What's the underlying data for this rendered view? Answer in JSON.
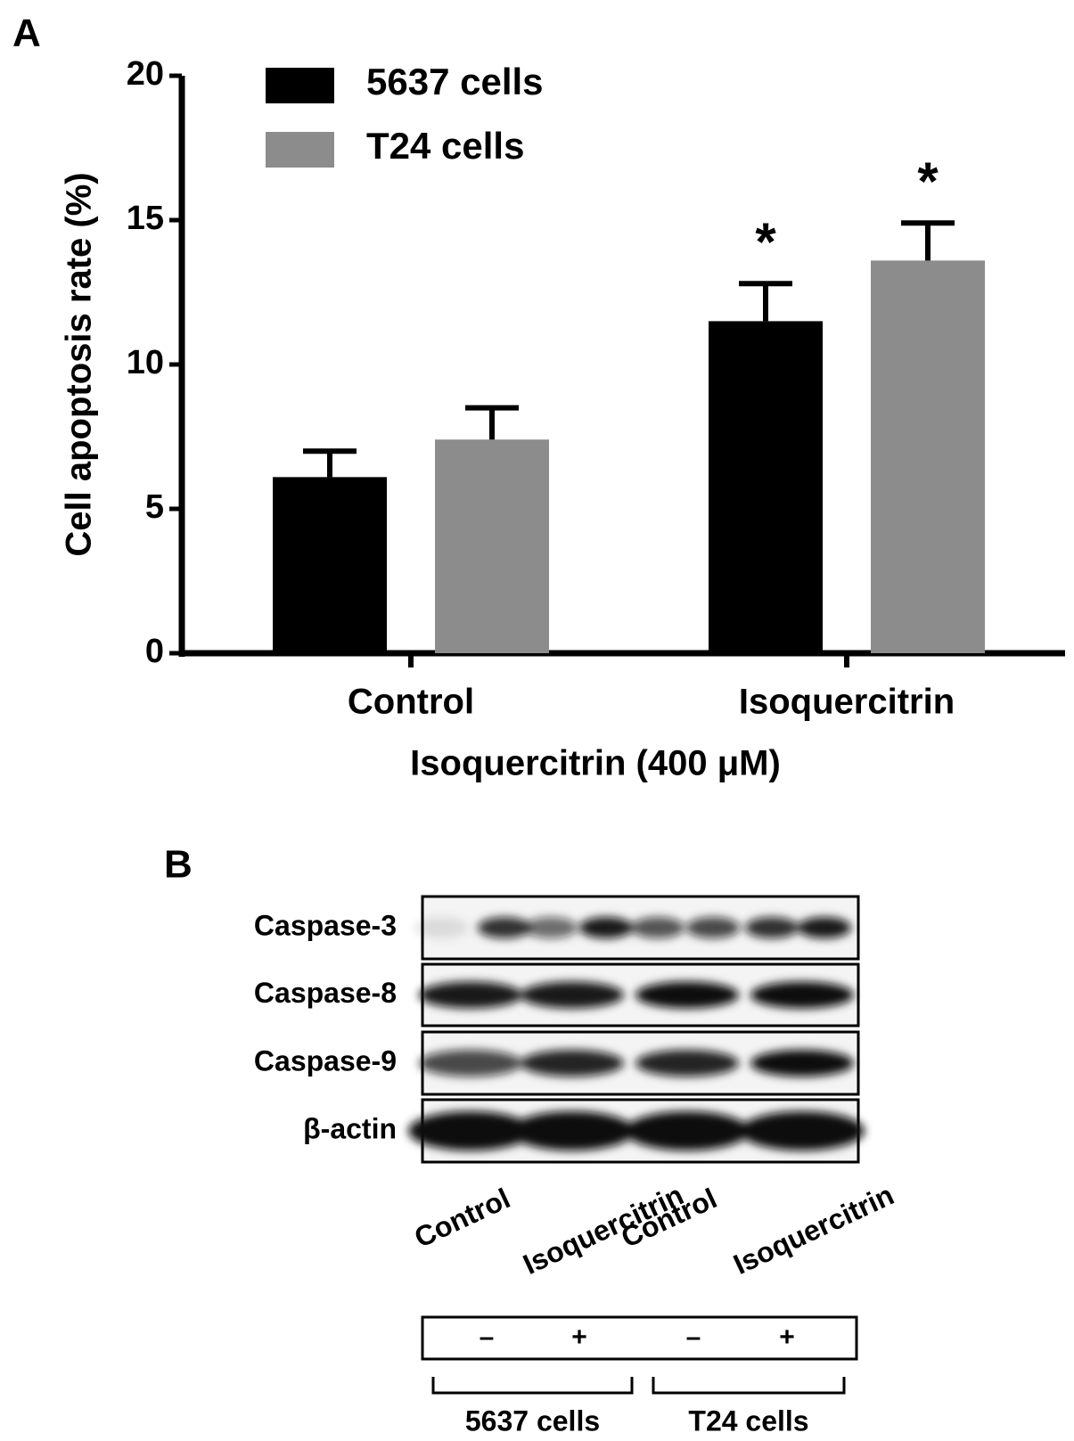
{
  "chart_data": {
    "type": "bar",
    "panel_label": "A",
    "y_label": "Cell apoptosis rate (%)",
    "x_label": "Isoquercitrin (400 μM)",
    "categories": [
      "Control",
      "Isoquercitrin"
    ],
    "series": [
      {
        "name": "5637 cells",
        "color": "#000000",
        "values": [
          6.1,
          11.5
        ],
        "errors": [
          0.9,
          1.3
        ],
        "significance": [
          null,
          "*"
        ]
      },
      {
        "name": "T24 cells",
        "color": "#8c8c8c",
        "values": [
          7.4,
          13.6
        ],
        "errors": [
          1.1,
          1.3
        ],
        "significance": [
          null,
          "*"
        ]
      }
    ],
    "ylim": [
      0,
      20
    ],
    "yticks": [
      0,
      5,
      10,
      15,
      20
    ],
    "grid": false,
    "legend": "top-left"
  },
  "blot": {
    "panel_label": "B",
    "rows": [
      "Caspase-3",
      "Caspase-8",
      "Caspase-9",
      "β-actin"
    ],
    "lanes": [
      "Control",
      "Isoquercitrin",
      "Control",
      "Isoquercitrin"
    ],
    "treatment": [
      "–",
      "+",
      "–",
      "+"
    ],
    "groups": [
      "5637 cells",
      "T24 cells"
    ]
  }
}
